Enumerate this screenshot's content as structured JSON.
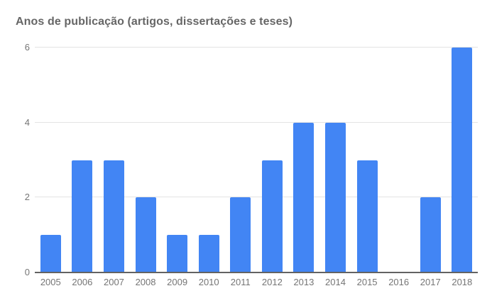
{
  "chart_data": {
    "type": "bar",
    "title": "Anos de publicação (artigos, dissertações e teses)",
    "categories": [
      "2005",
      "2006",
      "2007",
      "2008",
      "2009",
      "2010",
      "2011",
      "2012",
      "2013",
      "2014",
      "2015",
      "2016",
      "2017",
      "2018"
    ],
    "values": [
      1,
      3,
      3,
      2,
      1,
      1,
      2,
      3,
      4,
      4,
      3,
      0,
      2,
      6
    ],
    "xlabel": "",
    "ylabel": "",
    "ylim": [
      0,
      6
    ],
    "yticks": [
      0,
      2,
      4,
      6
    ],
    "grid": "horizontal",
    "legend": "none",
    "bar_color": "#4285f4",
    "colors": {
      "background": "#ffffff",
      "title_text": "#666666",
      "axis_label_text": "#757575",
      "gridline": "#e3e3e3",
      "baseline": "#636363"
    }
  }
}
